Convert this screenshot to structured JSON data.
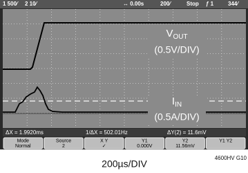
{
  "status_bar": {
    "ch1": "1 500⁄",
    "ch2": "2 10⁄",
    "time_ref": "↔ 0.00s",
    "time_scale": "200⁄",
    "run": "Stop",
    "trigger": "ƒ 1",
    "level": "344⁄"
  },
  "traces": {
    "vout": {
      "main": "V",
      "sub": "OUT",
      "scale": "(0.5V/DIV)"
    },
    "iin": {
      "main": "I",
      "sub": "IN",
      "scale": "(0.5A/DIV)"
    }
  },
  "measurements": {
    "dx": "ΔX = 1.9920ms",
    "inv_dx": "1/ΔX = 502.01Hz",
    "dy": "ΔY(2) = 11.6mV"
  },
  "softkeys": [
    {
      "top": "Mode",
      "bottom": "Normal"
    },
    {
      "top": "Source",
      "bottom": "2"
    },
    {
      "top": "X    Y",
      "bottom": "✓"
    },
    {
      "top": "Y1",
      "bottom": "0.000V"
    },
    {
      "top": "Y2",
      "bottom": "11.56mV"
    },
    {
      "top": "Y1 Y2",
      "bottom": ""
    }
  ],
  "caption": "200µs/DIV",
  "figure_id": "4600HV G10"
}
